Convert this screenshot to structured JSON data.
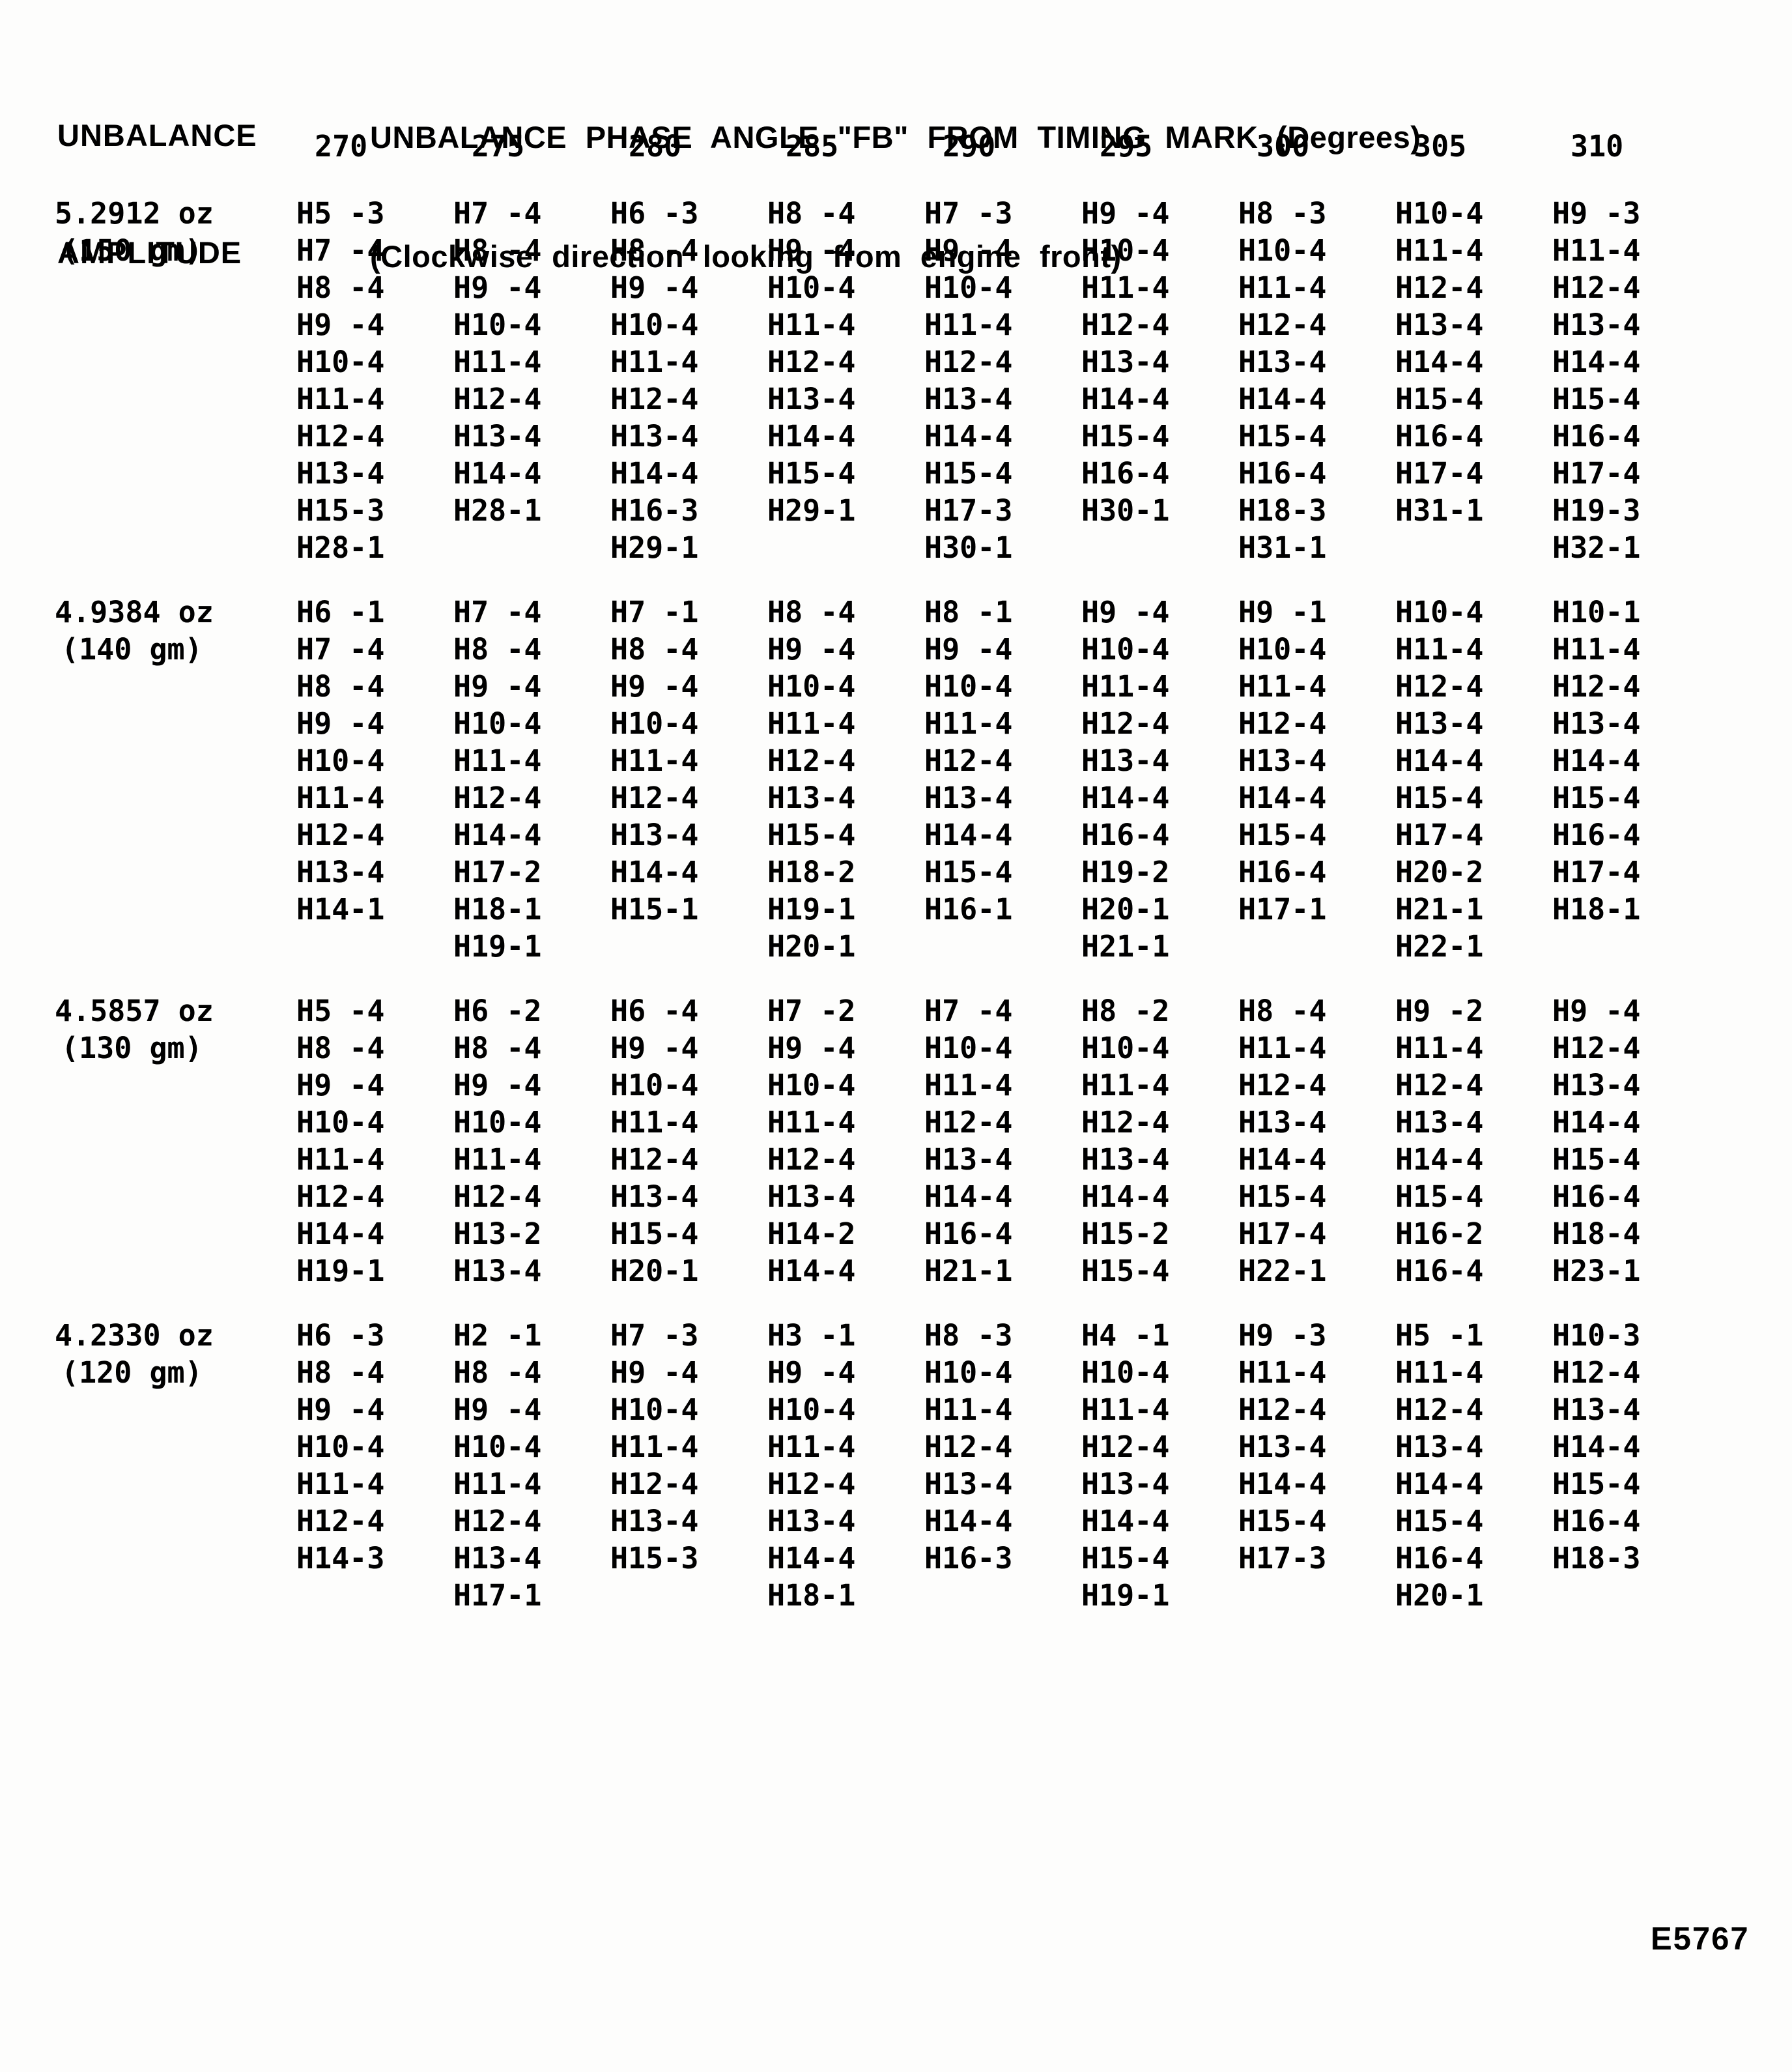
{
  "header": {
    "left_title_line1": "UNBALANCE",
    "left_title_line2": "AMPLITUDE",
    "main_title_line1": "UNBALANCE PHASE ANGLE \"FB\" FROM TIMING MARK (Degrees)",
    "main_title_line2": "(Clockwise direction looking from engine front)"
  },
  "columns": [
    "270",
    "275",
    "280",
    "285",
    "290",
    "295",
    "300",
    "305",
    "310"
  ],
  "blocks": [
    {
      "amplitude_oz": "5.2912 oz",
      "amplitude_gm": "(150 gm)",
      "values": [
        [
          "H5 -3",
          "H7 -4",
          "H8 -4",
          "H9 -4",
          "H10-4",
          "H11-4",
          "H12-4",
          "H13-4",
          "H15-3",
          "H28-1"
        ],
        [
          "H7 -4",
          "H8 -4",
          "H9 -4",
          "H10-4",
          "H11-4",
          "H12-4",
          "H13-4",
          "H14-4",
          "H28-1"
        ],
        [
          "H6 -3",
          "H8 -4",
          "H9 -4",
          "H10-4",
          "H11-4",
          "H12-4",
          "H13-4",
          "H14-4",
          "H16-3",
          "H29-1"
        ],
        [
          "H8 -4",
          "H9 -4",
          "H10-4",
          "H11-4",
          "H12-4",
          "H13-4",
          "H14-4",
          "H15-4",
          "H29-1"
        ],
        [
          "H7 -3",
          "H9 -4",
          "H10-4",
          "H11-4",
          "H12-4",
          "H13-4",
          "H14-4",
          "H15-4",
          "H17-3",
          "H30-1"
        ],
        [
          "H9 -4",
          "H10-4",
          "H11-4",
          "H12-4",
          "H13-4",
          "H14-4",
          "H15-4",
          "H16-4",
          "H30-1"
        ],
        [
          "H8 -3",
          "H10-4",
          "H11-4",
          "H12-4",
          "H13-4",
          "H14-4",
          "H15-4",
          "H16-4",
          "H18-3",
          "H31-1"
        ],
        [
          "H10-4",
          "H11-4",
          "H12-4",
          "H13-4",
          "H14-4",
          "H15-4",
          "H16-4",
          "H17-4",
          "H31-1"
        ],
        [
          "H9 -3",
          "H11-4",
          "H12-4",
          "H13-4",
          "H14-4",
          "H15-4",
          "H16-4",
          "H17-4",
          "H19-3",
          "H32-1"
        ]
      ]
    },
    {
      "amplitude_oz": "4.9384 oz",
      "amplitude_gm": "(140 gm)",
      "values": [
        [
          "H6 -1",
          "H7 -4",
          "H8 -4",
          "H9 -4",
          "H10-4",
          "H11-4",
          "H12-4",
          "H13-4",
          "H14-1"
        ],
        [
          "H7 -4",
          "H8 -4",
          "H9 -4",
          "H10-4",
          "H11-4",
          "H12-4",
          "H14-4",
          "H17-2",
          "H18-1",
          "H19-1"
        ],
        [
          "H7 -1",
          "H8 -4",
          "H9 -4",
          "H10-4",
          "H11-4",
          "H12-4",
          "H13-4",
          "H14-4",
          "H15-1"
        ],
        [
          "H8 -4",
          "H9 -4",
          "H10-4",
          "H11-4",
          "H12-4",
          "H13-4",
          "H15-4",
          "H18-2",
          "H19-1",
          "H20-1"
        ],
        [
          "H8 -1",
          "H9 -4",
          "H10-4",
          "H11-4",
          "H12-4",
          "H13-4",
          "H14-4",
          "H15-4",
          "H16-1"
        ],
        [
          "H9 -4",
          "H10-4",
          "H11-4",
          "H12-4",
          "H13-4",
          "H14-4",
          "H16-4",
          "H19-2",
          "H20-1",
          "H21-1"
        ],
        [
          "H9 -1",
          "H10-4",
          "H11-4",
          "H12-4",
          "H13-4",
          "H14-4",
          "H15-4",
          "H16-4",
          "H17-1"
        ],
        [
          "H10-4",
          "H11-4",
          "H12-4",
          "H13-4",
          "H14-4",
          "H15-4",
          "H17-4",
          "H20-2",
          "H21-1",
          "H22-1"
        ],
        [
          "H10-1",
          "H11-4",
          "H12-4",
          "H13-4",
          "H14-4",
          "H15-4",
          "H16-4",
          "H17-4",
          "H18-1"
        ]
      ]
    },
    {
      "amplitude_oz": "4.5857 oz",
      "amplitude_gm": "(130 gm)",
      "values": [
        [
          "H5 -4",
          "H8 -4",
          "H9 -4",
          "H10-4",
          "H11-4",
          "H12-4",
          "H14-4",
          "H19-1"
        ],
        [
          "H6 -2",
          "H8 -4",
          "H9 -4",
          "H10-4",
          "H11-4",
          "H12-4",
          "H13-2",
          "H13-4"
        ],
        [
          "H6 -4",
          "H9 -4",
          "H10-4",
          "H11-4",
          "H12-4",
          "H13-4",
          "H15-4",
          "H20-1"
        ],
        [
          "H7 -2",
          "H9 -4",
          "H10-4",
          "H11-4",
          "H12-4",
          "H13-4",
          "H14-2",
          "H14-4"
        ],
        [
          "H7 -4",
          "H10-4",
          "H11-4",
          "H12-4",
          "H13-4",
          "H14-4",
          "H16-4",
          "H21-1"
        ],
        [
          "H8 -2",
          "H10-4",
          "H11-4",
          "H12-4",
          "H13-4",
          "H14-4",
          "H15-2",
          "H15-4"
        ],
        [
          "H8 -4",
          "H11-4",
          "H12-4",
          "H13-4",
          "H14-4",
          "H15-4",
          "H17-4",
          "H22-1"
        ],
        [
          "H9 -2",
          "H11-4",
          "H12-4",
          "H13-4",
          "H14-4",
          "H15-4",
          "H16-2",
          "H16-4"
        ],
        [
          "H9 -4",
          "H12-4",
          "H13-4",
          "H14-4",
          "H15-4",
          "H16-4",
          "H18-4",
          "H23-1"
        ]
      ]
    },
    {
      "amplitude_oz": "4.2330 oz",
      "amplitude_gm": "(120 gm)",
      "values": [
        [
          "H6 -3",
          "H8 -4",
          "H9 -4",
          "H10-4",
          "H11-4",
          "H12-4",
          "H14-3"
        ],
        [
          "H2 -1",
          "H8 -4",
          "H9 -4",
          "H10-4",
          "H11-4",
          "H12-4",
          "H13-4",
          "H17-1"
        ],
        [
          "H7 -3",
          "H9 -4",
          "H10-4",
          "H11-4",
          "H12-4",
          "H13-4",
          "H15-3"
        ],
        [
          "H3 -1",
          "H9 -4",
          "H10-4",
          "H11-4",
          "H12-4",
          "H13-4",
          "H14-4",
          "H18-1"
        ],
        [
          "H8 -3",
          "H10-4",
          "H11-4",
          "H12-4",
          "H13-4",
          "H14-4",
          "H16-3"
        ],
        [
          "H4 -1",
          "H10-4",
          "H11-4",
          "H12-4",
          "H13-4",
          "H14-4",
          "H15-4",
          "H19-1"
        ],
        [
          "H9 -3",
          "H11-4",
          "H12-4",
          "H13-4",
          "H14-4",
          "H15-4",
          "H17-3"
        ],
        [
          "H5 -1",
          "H11-4",
          "H12-4",
          "H13-4",
          "H14-4",
          "H15-4",
          "H16-4",
          "H20-1"
        ],
        [
          "H10-3",
          "H12-4",
          "H13-4",
          "H14-4",
          "H15-4",
          "H16-4",
          "H18-3"
        ]
      ]
    }
  ],
  "figure_code": "E5767"
}
